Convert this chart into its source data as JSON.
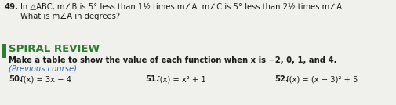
{
  "bg_color": "#f0f0ec",
  "text_color": "#1a1a1a",
  "spiral_color": "#2e7d32",
  "bar_color": "#2e7d32",
  "prev_color": "#3366aa",
  "num49": "49.",
  "line1_text": "In △ABC, m∠B is 5° less than 1½ times m∠A. m∠C is 5° less than 2½ times m∠A.",
  "line2_text": "What is m∠A in degrees?",
  "spiral_title": "SPIRAL REVIEW",
  "make_table_text": "Make a table to show the value of each function when x is −2, 0, 1, and 4.",
  "prev_course": "(Previous course)",
  "num50": "50.",
  "item50": "f(x) = 3x − 4",
  "num51": "51.",
  "item51": "f(x) = x² + 1",
  "num52": "52.",
  "item52": "f(x) = (x − 3)² + 5",
  "figsize": [
    5.06,
    1.34
  ],
  "dpi": 100
}
